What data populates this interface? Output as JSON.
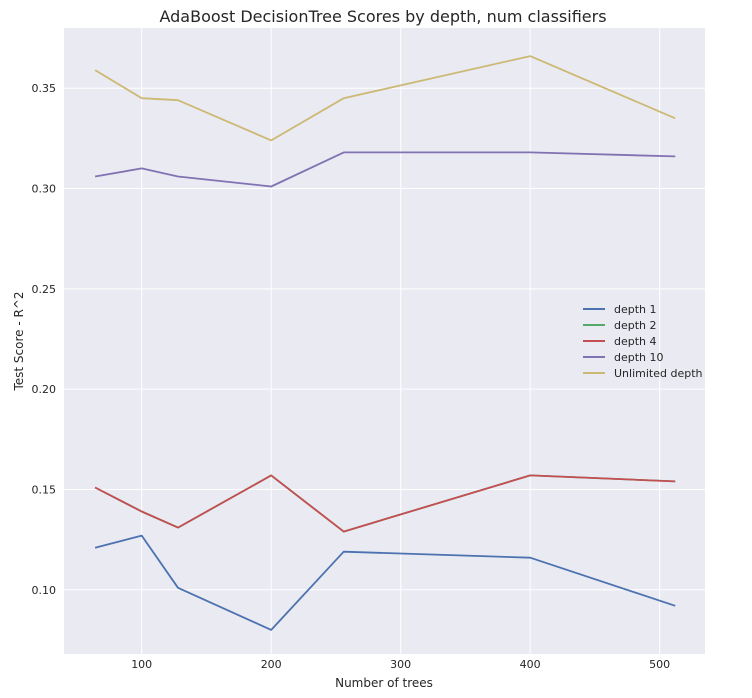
{
  "chart_data": {
    "type": "line",
    "title": "AdaBoost DecisionTree Scores by depth, num classifiers",
    "xlabel": "Number of trees",
    "ylabel": "Test Score - R^2",
    "xlim": [
      40,
      535
    ],
    "ylim": [
      0.068,
      0.38
    ],
    "xticks": [
      100,
      200,
      300,
      400,
      500
    ],
    "yticks": [
      0.1,
      0.15,
      0.2,
      0.25,
      0.3,
      0.35
    ],
    "ytick_labels": [
      "0.10",
      "0.15",
      "0.20",
      "0.25",
      "0.30",
      "0.35"
    ],
    "grid": true,
    "background": "#eaeaf2",
    "legend_position": "center-right",
    "x": [
      64,
      100,
      128,
      200,
      256,
      400,
      512
    ],
    "series": [
      {
        "name": "depth 1",
        "color": "#4c72b0",
        "values": [
          0.121,
          0.127,
          0.101,
          0.08,
          0.119,
          0.116,
          0.092
        ]
      },
      {
        "name": "depth 2",
        "color": "#55a868",
        "values": [
          0.151,
          0.139,
          0.131,
          0.157,
          0.129,
          0.157,
          0.154
        ]
      },
      {
        "name": "depth 4",
        "color": "#c44e52",
        "values": [
          0.151,
          0.139,
          0.131,
          0.157,
          0.129,
          0.157,
          0.154
        ]
      },
      {
        "name": "depth 10",
        "color": "#8172b2",
        "values": [
          0.306,
          0.31,
          0.306,
          0.301,
          0.318,
          0.318,
          0.316
        ]
      },
      {
        "name": "Unlimited depth",
        "color": "#ccb974",
        "values": [
          0.359,
          0.345,
          0.344,
          0.324,
          0.345,
          0.366,
          0.335
        ]
      }
    ]
  }
}
